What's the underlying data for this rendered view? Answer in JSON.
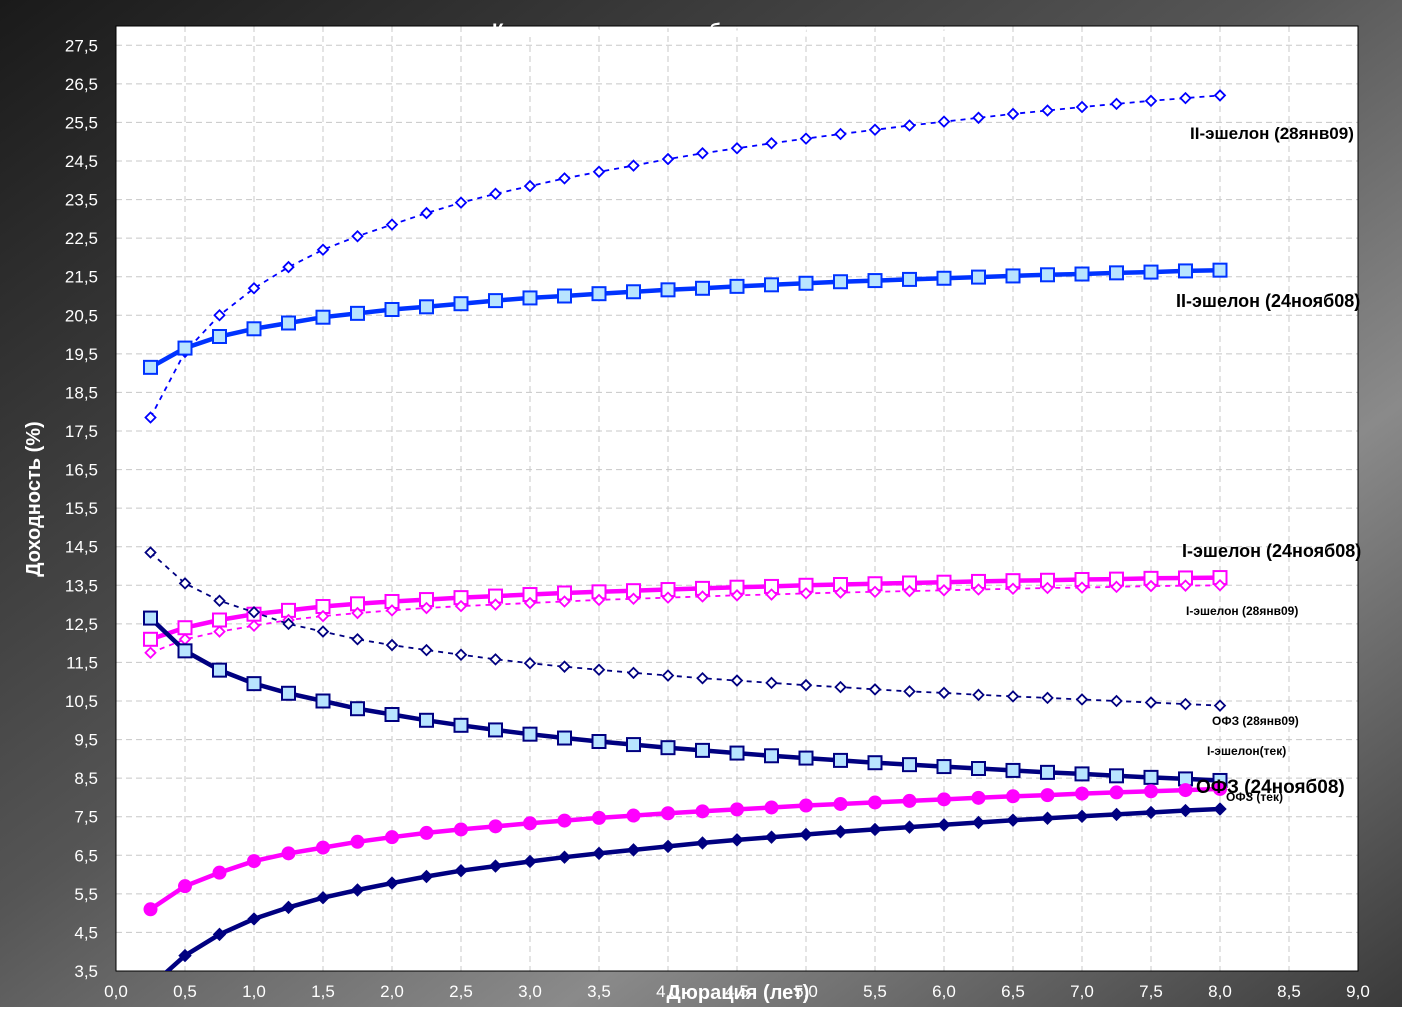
{
  "chart_data": {
    "type": "line",
    "title": "Кривые доходности рублевого долгового рынка",
    "xlabel": "Дюрация (лет)",
    "ylabel": "Доходность (%)",
    "xlim": [
      0,
      9
    ],
    "ylim": [
      3.5,
      28.0
    ],
    "x_ticks": [
      "0,0",
      "0,5",
      "1,0",
      "1,5",
      "2,0",
      "2,5",
      "3,0",
      "3,5",
      "4,0",
      "4,5",
      "5,0",
      "5,5",
      "6,0",
      "6,5",
      "7,0",
      "7,5",
      "8,0",
      "8,5",
      "9,0"
    ],
    "y_ticks": [
      "3,5",
      "4,5",
      "5,5",
      "6,5",
      "7,5",
      "8,5",
      "9,5",
      "10,5",
      "11,5",
      "12,5",
      "13,5",
      "14,5",
      "15,5",
      "16,5",
      "17,5",
      "18,5",
      "19,5",
      "20,5",
      "21,5",
      "22,5",
      "23,5",
      "24,5",
      "25,5",
      "26,5",
      "27,5"
    ],
    "grid": true,
    "background": "#ffffff",
    "frame_color": "#3a3a3a",
    "x": [
      0.25,
      0.5,
      0.75,
      1.0,
      1.25,
      1.5,
      1.75,
      2.0,
      2.25,
      2.5,
      2.75,
      3.0,
      3.25,
      3.5,
      3.75,
      4.0,
      4.25,
      4.5,
      4.75,
      5.0,
      5.25,
      5.5,
      5.75,
      6.0,
      6.25,
      6.5,
      6.75,
      7.0,
      7.25,
      7.5,
      7.75,
      8.0
    ],
    "series": [
      {
        "name": "II-эшелон (28янв09)",
        "color": "#0000ff",
        "style": "dotted",
        "marker": "diamond-open",
        "values": [
          17.85,
          19.55,
          20.5,
          21.2,
          21.75,
          22.2,
          22.55,
          22.85,
          23.15,
          23.42,
          23.65,
          23.85,
          24.05,
          24.22,
          24.38,
          24.55,
          24.7,
          24.83,
          24.96,
          25.08,
          25.2,
          25.31,
          25.42,
          25.52,
          25.62,
          25.72,
          25.81,
          25.9,
          25.98,
          26.06,
          26.13,
          26.2
        ]
      },
      {
        "name": "II-эшелон (24нояб08)",
        "color": "#0033ff",
        "style": "solid",
        "marker": "square-filled-light",
        "values": [
          19.15,
          19.65,
          19.95,
          20.15,
          20.3,
          20.45,
          20.55,
          20.65,
          20.72,
          20.8,
          20.88,
          20.95,
          21.0,
          21.06,
          21.11,
          21.16,
          21.2,
          21.25,
          21.29,
          21.33,
          21.37,
          21.4,
          21.43,
          21.46,
          21.49,
          21.52,
          21.55,
          21.57,
          21.6,
          21.62,
          21.65,
          21.67
        ]
      },
      {
        "name": "I-эшелон (24нояб08)",
        "color": "#ff00ff",
        "style": "solid",
        "marker": "square-open",
        "values": [
          12.1,
          12.4,
          12.6,
          12.75,
          12.85,
          12.95,
          13.02,
          13.08,
          13.13,
          13.18,
          13.22,
          13.26,
          13.3,
          13.33,
          13.36,
          13.39,
          13.42,
          13.45,
          13.47,
          13.5,
          13.52,
          13.54,
          13.56,
          13.58,
          13.6,
          13.62,
          13.63,
          13.65,
          13.66,
          13.68,
          13.69,
          13.7
        ]
      },
      {
        "name": "I-эшелон (28янв09)",
        "color": "#ff00ff",
        "style": "dotted",
        "marker": "diamond-open",
        "values": [
          11.75,
          12.1,
          12.3,
          12.45,
          12.6,
          12.7,
          12.78,
          12.85,
          12.91,
          12.96,
          13.0,
          13.04,
          13.08,
          13.12,
          13.15,
          13.18,
          13.21,
          13.24,
          13.26,
          13.29,
          13.31,
          13.33,
          13.35,
          13.37,
          13.39,
          13.41,
          13.43,
          13.44,
          13.46,
          13.48,
          13.49,
          13.5
        ]
      },
      {
        "name": "ОФЗ (28янв09)",
        "color": "#000080",
        "style": "dotted",
        "marker": "diamond-open",
        "values": [
          14.35,
          13.55,
          13.1,
          12.8,
          12.5,
          12.3,
          12.1,
          11.95,
          11.82,
          11.7,
          11.58,
          11.48,
          11.39,
          11.31,
          11.23,
          11.16,
          11.09,
          11.03,
          10.97,
          10.91,
          10.86,
          10.8,
          10.75,
          10.71,
          10.66,
          10.62,
          10.58,
          10.54,
          10.5,
          10.46,
          10.42,
          10.38
        ]
      },
      {
        "name": "I-эшелон(тек)",
        "color": "#000080",
        "style": "solid",
        "marker": "square-filled-light",
        "values": [
          12.65,
          11.8,
          11.3,
          10.95,
          10.7,
          10.5,
          10.3,
          10.15,
          10.0,
          9.87,
          9.75,
          9.64,
          9.54,
          9.45,
          9.37,
          9.29,
          9.22,
          9.15,
          9.08,
          9.02,
          8.96,
          8.9,
          8.85,
          8.8,
          8.75,
          8.7,
          8.65,
          8.61,
          8.56,
          8.52,
          8.48,
          8.44
        ]
      },
      {
        "name": "ОФЗ (24нояб08)",
        "color": "#ff00ff",
        "style": "solid",
        "marker": "circle-filled",
        "values": [
          5.1,
          5.7,
          6.05,
          6.35,
          6.55,
          6.7,
          6.85,
          6.97,
          7.08,
          7.17,
          7.25,
          7.33,
          7.4,
          7.47,
          7.53,
          7.59,
          7.64,
          7.69,
          7.74,
          7.79,
          7.83,
          7.87,
          7.91,
          7.95,
          7.99,
          8.03,
          8.06,
          8.1,
          8.13,
          8.16,
          8.19,
          8.22
        ]
      },
      {
        "name": "ОФЗ (тек)",
        "color": "#000080",
        "style": "solid",
        "marker": "diamond-filled",
        "values": [
          3.1,
          3.9,
          4.45,
          4.85,
          5.15,
          5.4,
          5.6,
          5.78,
          5.95,
          6.1,
          6.22,
          6.34,
          6.45,
          6.55,
          6.64,
          6.73,
          6.82,
          6.9,
          6.97,
          7.04,
          7.11,
          7.17,
          7.23,
          7.29,
          7.35,
          7.41,
          7.46,
          7.51,
          7.56,
          7.61,
          7.66,
          7.7
        ]
      }
    ],
    "series_labels": [
      {
        "text": "II-эшелон (28янв09)",
        "series": 0
      },
      {
        "text": "II-эшелон (24нояб08)",
        "series": 1
      },
      {
        "text": "I-эшелон (24нояб08)",
        "series": 2
      },
      {
        "text": "I-эшелон (28янв09)",
        "series": 3
      },
      {
        "text": "ОФЗ (28янв09)",
        "series": 4
      },
      {
        "text": "I-эшелон(тек)",
        "series": 5
      },
      {
        "text": "ОФЗ (24нояб08)",
        "series": 6
      },
      {
        "text": "ОФЗ (тек)",
        "series": 7
      }
    ]
  }
}
